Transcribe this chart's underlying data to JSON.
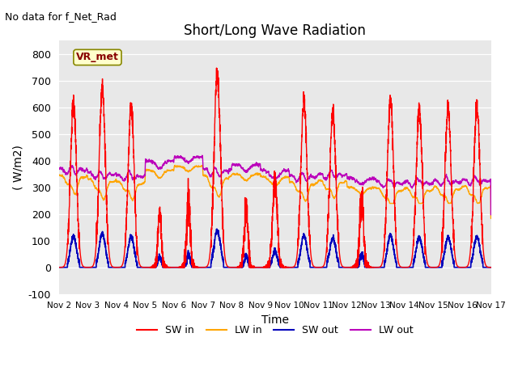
{
  "title": "Short/Long Wave Radiation",
  "xlabel": "Time",
  "ylabel": "( W/m2)",
  "ylim": [
    -100,
    850
  ],
  "yticks": [
    -100,
    0,
    100,
    200,
    300,
    400,
    500,
    600,
    700,
    800
  ],
  "xtick_labels": [
    "Nov 2",
    "Nov 3",
    "Nov 4",
    "Nov 5",
    "Nov 6",
    "Nov 7",
    "Nov 8",
    "Nov 9",
    "Nov 10",
    "Nov 11",
    "Nov 12",
    "Nov 13",
    "Nov 14",
    "Nov 15",
    "Nov 16",
    "Nov 17"
  ],
  "annotation_text": "No data for f_Net_Rad",
  "box_label": "VR_met",
  "colors": {
    "SW_in": "#ff0000",
    "LW_in": "#ffa500",
    "SW_out": "#0000bb",
    "LW_out": "#bb00bb"
  },
  "background_color": "#e8e8e8",
  "legend_labels": [
    "SW in",
    "LW in",
    "SW out",
    "LW out"
  ]
}
